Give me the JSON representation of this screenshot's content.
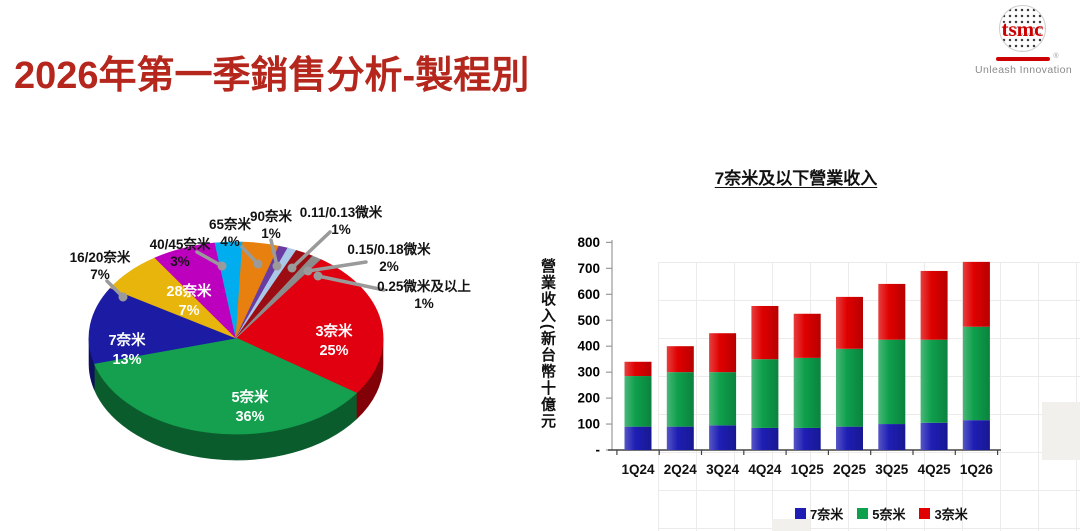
{
  "slide": {
    "title": "2026年第一季銷售分析-製程別",
    "title_color": "#b5261d",
    "background": "#ffffff"
  },
  "logo": {
    "brand": "tsmc",
    "registered_mark": "®",
    "tagline": "Unleash Innovation",
    "brand_color": "#cc0000",
    "tagline_color": "#8a8a8a"
  },
  "chart_data": [
    {
      "type": "pie",
      "style": "3d",
      "unit": "%",
      "start_angle_deg": 35,
      "slices": [
        {
          "label": "3奈米",
          "value": 25,
          "color": "#e1000f",
          "label_inside": true
        },
        {
          "label": "5奈米",
          "value": 36,
          "color": "#14a04f",
          "label_inside": true
        },
        {
          "label": "7奈米",
          "value": 13,
          "color": "#1b1ba4",
          "label_inside": true
        },
        {
          "label": "16/20奈米",
          "value": 7,
          "color": "#e7b50c",
          "label_inside": false
        },
        {
          "label": "28奈米",
          "value": 7,
          "color": "#bd00bd",
          "label_inside": true
        },
        {
          "label": "40/45奈米",
          "value": 3,
          "color": "#00aeef",
          "label_inside": false
        },
        {
          "label": "65奈米",
          "value": 4,
          "color": "#e8800f",
          "label_inside": false
        },
        {
          "label": "90奈米",
          "value": 1,
          "color": "#6a3ca2",
          "label_inside": false
        },
        {
          "label": "0.11/0.13微米",
          "value": 1,
          "color": "#aac8e8",
          "label_inside": false
        },
        {
          "label": "0.15/0.18微米",
          "value": 2,
          "color": "#9b0d12",
          "label_inside": false
        },
        {
          "label": "0.25微米及以上",
          "value": 1,
          "color": "#8c8c8c",
          "label_inside": false
        }
      ]
    },
    {
      "type": "bar",
      "stacked": true,
      "title": "7奈米及以下營業收入",
      "ylabel": "營業收入(新台幣十億元",
      "categories": [
        "1Q24",
        "2Q24",
        "3Q24",
        "4Q24",
        "1Q25",
        "2Q25",
        "3Q25",
        "4Q25",
        "1Q26"
      ],
      "series": [
        {
          "name": "7奈米",
          "color": "#1e1eb4",
          "values": [
            90,
            90,
            95,
            85,
            85,
            90,
            100,
            105,
            115
          ]
        },
        {
          "name": "5奈米",
          "color": "#0ea04c",
          "values": [
            195,
            210,
            205,
            265,
            270,
            300,
            325,
            320,
            360
          ]
        },
        {
          "name": "3奈米",
          "color": "#e00000",
          "values": [
            55,
            100,
            150,
            205,
            170,
            200,
            215,
            265,
            250
          ]
        }
      ],
      "totals": [
        340,
        400,
        450,
        555,
        525,
        590,
        640,
        690,
        725
      ],
      "ylim": [
        0,
        800
      ],
      "ytick_step": 100,
      "ytick_labels": [
        "-",
        "100",
        "200",
        "300",
        "400",
        "500",
        "600",
        "700",
        "800"
      ],
      "legend_position": "bottom",
      "grid": false
    }
  ]
}
